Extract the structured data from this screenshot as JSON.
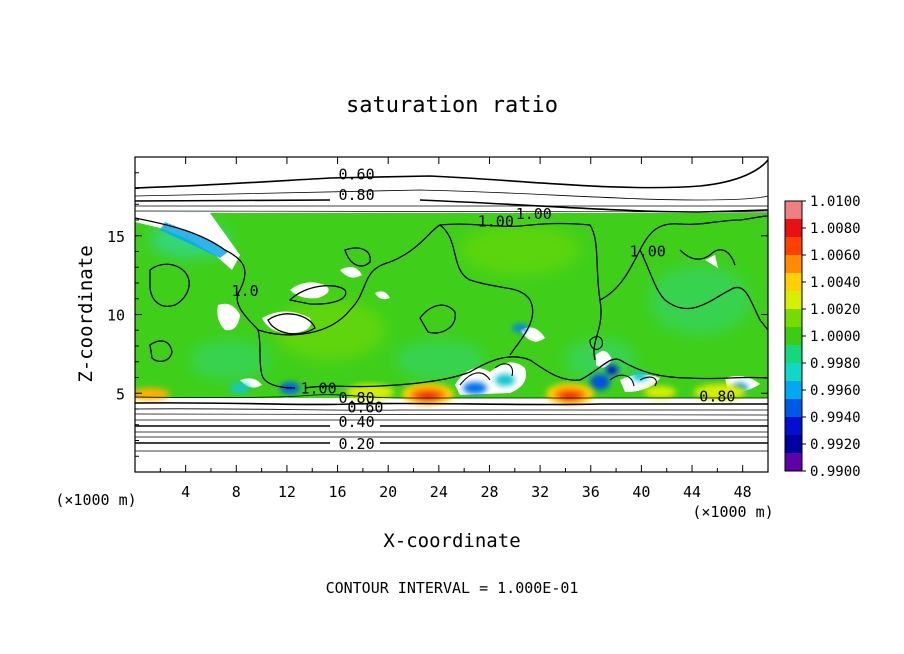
{
  "chart_data": {
    "type": "heatmap",
    "title": "saturation ratio",
    "xlabel": "X-coordinate",
    "ylabel": "Z-coordinate",
    "x_unit": "(×1000 m)",
    "z_unit": "(×1000 m)",
    "xlim": [
      0,
      50
    ],
    "ylim": [
      0,
      20
    ],
    "x_ticks": [
      4,
      8,
      12,
      16,
      20,
      24,
      28,
      32,
      36,
      40,
      44,
      48
    ],
    "y_ticks": [
      5,
      10,
      15
    ],
    "colorbar": {
      "ticks": [
        "1.0100",
        "1.0080",
        "1.0060",
        "1.0040",
        "1.0020",
        "1.0000",
        "0.9980",
        "0.9960",
        "0.9940",
        "0.9920",
        "0.9900"
      ],
      "colors": [
        "#f08080",
        "#e81010",
        "#ff4000",
        "#ff8c00",
        "#ffd000",
        "#d8ee00",
        "#76dc00",
        "#3ccc14",
        "#14d87a",
        "#10d8c8",
        "#00a8f0",
        "#0058e8",
        "#0010d0",
        "#0000a0",
        "#6000a8"
      ]
    },
    "contour_labels": [
      {
        "text": "0.60",
        "x": 17.5,
        "z": 18.7
      },
      {
        "text": "0.80",
        "x": 17.5,
        "z": 17.4
      },
      {
        "text": "1.00",
        "x": 28.5,
        "z": 15.7
      },
      {
        "text": "1.00",
        "x": 31.5,
        "z": 16.2
      },
      {
        "text": "1.00",
        "x": 40.5,
        "z": 13.8
      },
      {
        "text": "1.0",
        "x": 8.7,
        "z": 11.3
      },
      {
        "text": "1.00",
        "x": 14.5,
        "z": 5.1
      },
      {
        "text": "0.80",
        "x": 17.5,
        "z": 4.5
      },
      {
        "text": "0.60",
        "x": 18.2,
        "z": 3.9
      },
      {
        "text": "0.40",
        "x": 17.5,
        "z": 3.0
      },
      {
        "text": "0.20",
        "x": 17.5,
        "z": 1.6
      },
      {
        "text": "0.80",
        "x": 46,
        "z": 4.6
      }
    ],
    "footer": "CONTOUR INTERVAL = 1.000E-01"
  }
}
